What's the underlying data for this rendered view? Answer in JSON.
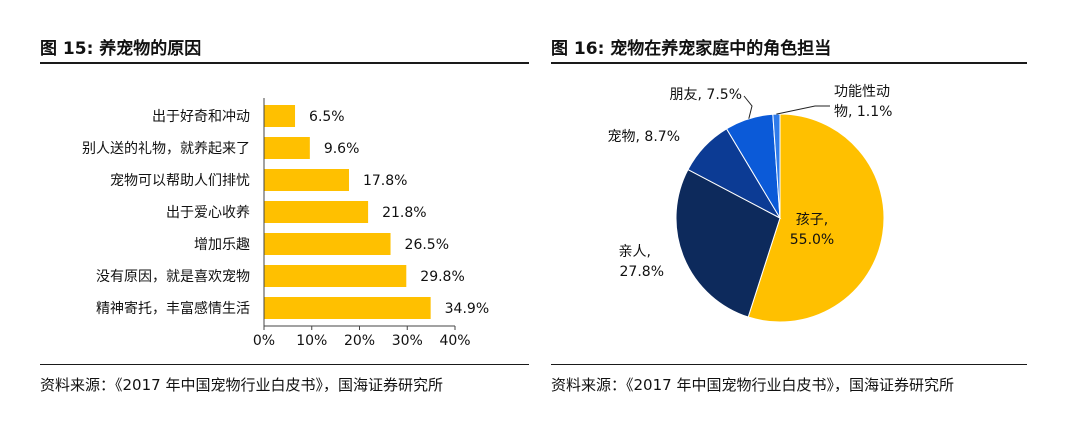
{
  "left": {
    "title": "图 15:  养宠物的原因",
    "source": "资料来源：《2017 年中国宠物行业白皮书》，国海证券研究所"
  },
  "right": {
    "title": "图 16:  宠物在养宠家庭中的角色担当",
    "source": "资料来源：《2017 年中国宠物行业白皮书》，国海证券研究所"
  },
  "colors": {
    "bar": "#FFC000",
    "child": "#FFC000",
    "relative": "#0D2A5C",
    "pet": "#0C3B94",
    "friend": "#0B5AD8",
    "other": "#2F7BEA"
  },
  "chart_data": [
    {
      "type": "bar",
      "orientation": "horizontal",
      "categories": [
        "出于好奇和冲动",
        "别人送的礼物，就养起来了",
        "宠物可以帮助人们排忧",
        "出于爱心收养",
        "增加乐趣",
        "没有原因，就是喜欢宠物",
        "精神寄托，丰富感情生活"
      ],
      "values": [
        6.5,
        9.6,
        17.8,
        21.8,
        26.5,
        29.8,
        34.9
      ],
      "value_labels": [
        "6.5%",
        "9.6%",
        "17.8%",
        "21.8%",
        "26.5%",
        "29.8%",
        "34.9%"
      ],
      "xticks": [
        "0%",
        "10%",
        "20%",
        "30%",
        "40%"
      ],
      "xlim": [
        0,
        40
      ],
      "grid": false
    },
    {
      "type": "pie",
      "slices": [
        {
          "label": "孩子,",
          "value_label": "55.0%",
          "value": 55.0
        },
        {
          "label": "亲人,",
          "value_label": "27.8%",
          "value": 27.8
        },
        {
          "label": "宠物, 8.7%",
          "value_label": "",
          "value": 8.7
        },
        {
          "label": "朋友, 7.5%",
          "value_label": "",
          "value": 7.5
        },
        {
          "label": "功能性动",
          "value_label": "物, 1.1%",
          "value": 1.1
        }
      ]
    }
  ]
}
